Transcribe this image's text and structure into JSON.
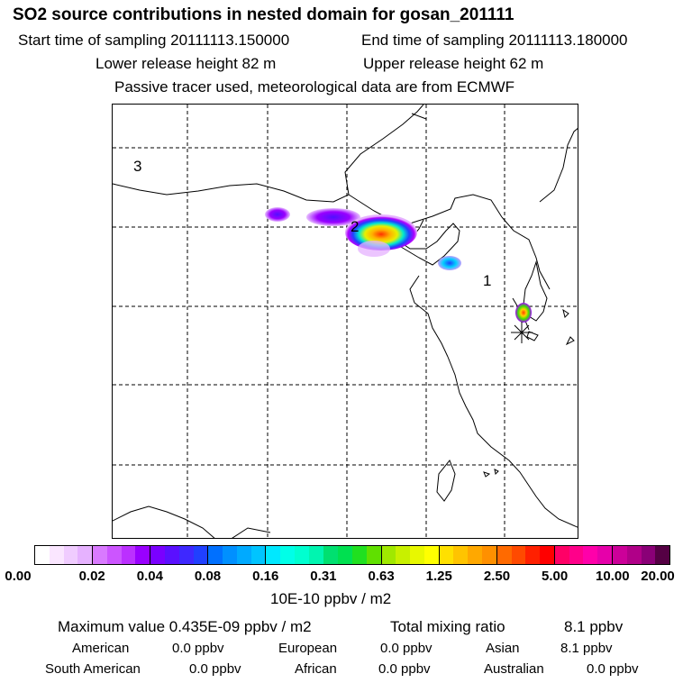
{
  "header": {
    "title": "SO2 source contributions in nested domain for gosan_201111",
    "start_time": "Start time of sampling 20111113.150000",
    "end_time": "End time of sampling 20111113.180000",
    "lower_height": "Lower release height   82 m",
    "upper_height": "Upper release height   62 m",
    "tracer_note": "Passive tracer used, meteorological data are from ECMWF"
  },
  "map": {
    "region_labels": [
      "1",
      "2",
      "3"
    ],
    "receptor_marker": "asterisk-marker",
    "plume_colors": [
      "#9a00ff",
      "#00e4ff",
      "#ffd000",
      "#ff4000"
    ]
  },
  "colorbar": {
    "ticks": [
      "0.00",
      "0.02",
      "0.04",
      "0.08",
      "0.16",
      "0.31",
      "0.63",
      "1.25",
      "2.50",
      "5.00",
      "10.00",
      "20.00"
    ],
    "segments": [
      [
        "#ffffff",
        "#fae6ff",
        "#f0ccff",
        "#e6b2ff"
      ],
      [
        "#d97aff",
        "#cc55ff",
        "#bb30ff",
        "#9900ff"
      ],
      [
        "#7a00ff",
        "#5a10ff",
        "#3e28ff",
        "#2040ff"
      ],
      [
        "#0070ff",
        "#0090ff",
        "#00aaff",
        "#00c4ff"
      ],
      [
        "#00e8ff",
        "#00ffe8",
        "#00ffd0",
        "#00f5b0"
      ],
      [
        "#00e070",
        "#00e050",
        "#20e020",
        "#60e000"
      ],
      [
        "#a0e800",
        "#c8f000",
        "#e8f800",
        "#ffff00"
      ],
      [
        "#ffe000",
        "#ffc400",
        "#ffa800",
        "#ff9000"
      ],
      [
        "#ff6a00",
        "#ff4a00",
        "#ff2000",
        "#ff0000"
      ],
      [
        "#ff0066",
        "#ff008a",
        "#ff00aa",
        "#e600aa"
      ],
      [
        "#cc0099",
        "#b00088",
        "#8a0077",
        "#550044"
      ]
    ],
    "units": "10E-10 ppbv / m2"
  },
  "summary": {
    "max_value": "Maximum value  0.435E-09 ppbv / m2",
    "total_label": "Total mixing ratio",
    "total_value": "8.1 ppbv",
    "regions": [
      {
        "name": "American",
        "value": "0.0 ppbv"
      },
      {
        "name": "European",
        "value": "0.0 ppbv"
      },
      {
        "name": "Asian",
        "value": "8.1 ppbv"
      },
      {
        "name": "South American",
        "value": "0.0 ppbv"
      },
      {
        "name": "African",
        "value": "0.0 ppbv"
      },
      {
        "name": "Australian",
        "value": "0.0 ppbv"
      }
    ]
  }
}
